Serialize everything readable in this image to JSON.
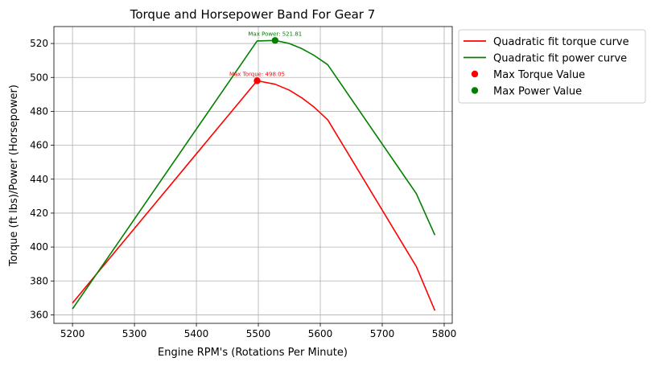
{
  "chart_data": {
    "type": "line",
    "title": "Torque and Horsepower Band For Gear 7",
    "xlabel": "Engine RPM's (Rotations Per Minute)",
    "ylabel": "Torque (ft lbs)/Power (Horsepower)",
    "xlim": [
      5170,
      5813
    ],
    "ylim": [
      355,
      530
    ],
    "xticks": [
      5200,
      5300,
      5400,
      5500,
      5600,
      5700,
      5800
    ],
    "yticks": [
      360,
      380,
      400,
      420,
      440,
      460,
      480,
      500,
      520
    ],
    "grid": true,
    "legend_position": "outside-top-right",
    "series": [
      {
        "name": "Quadratic fit torque curve",
        "color": "#ff0000",
        "x": [
          5200,
          5498,
          5527,
          5550,
          5570,
          5590,
          5612,
          5755,
          5785
        ],
        "y": [
          367,
          498.05,
          496,
          492.5,
          488,
          482.5,
          475,
          388.5,
          362.5
        ]
      },
      {
        "name": "Quadratic fit power curve",
        "color": "#008000",
        "x": [
          5200,
          5498,
          5527,
          5550,
          5570,
          5590,
          5612,
          5755,
          5785
        ],
        "y": [
          363.5,
          521.5,
          521.81,
          520,
          517,
          513,
          507.5,
          431.5,
          407
        ]
      }
    ],
    "markers": [
      {
        "name": "Max Torque Value",
        "x": 5498,
        "y": 498.05,
        "color": "#ff0000",
        "annotation": "Max Torque: 498.05"
      },
      {
        "name": "Max Power Value",
        "x": 5527,
        "y": 521.81,
        "color": "#008000",
        "annotation": "Max Power: 521.81"
      }
    ]
  }
}
